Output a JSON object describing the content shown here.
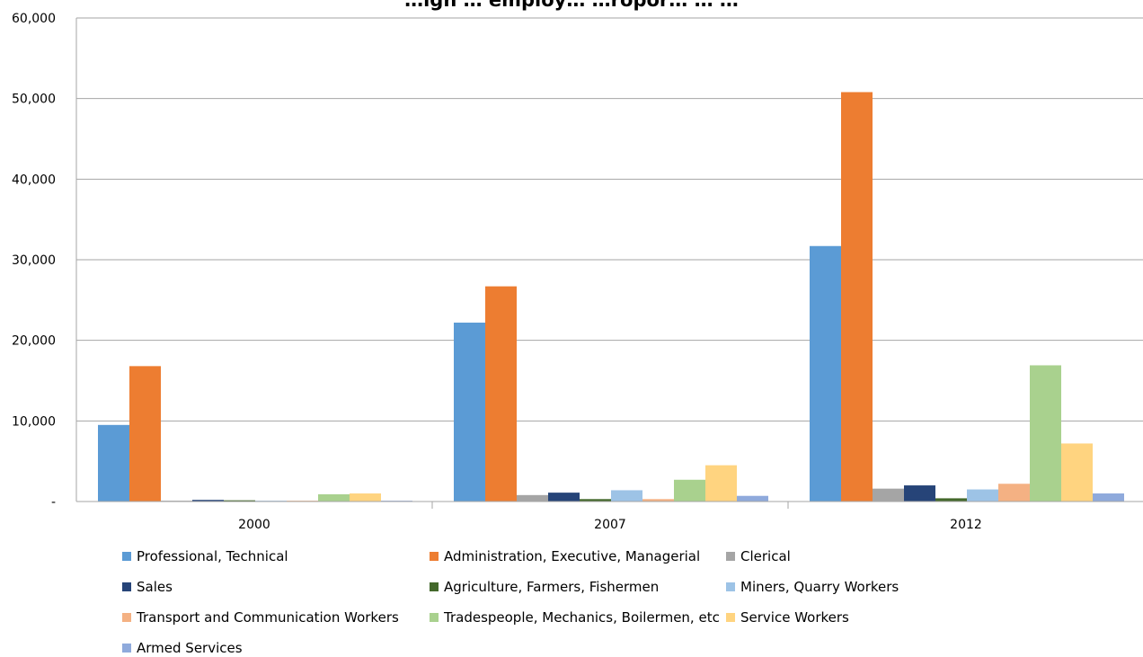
{
  "chart_data": {
    "type": "bar",
    "title": "…ign … employ… …ropor… … …",
    "categories": [
      "2000",
      "2007",
      "2012"
    ],
    "ylim": [
      0,
      60000
    ],
    "yticks": [
      0,
      10000,
      20000,
      30000,
      40000,
      50000,
      60000
    ],
    "ytick_labels": [
      "-",
      "10,000",
      "20,000",
      "30,000",
      "40,000",
      "50,000",
      "60,000"
    ],
    "grid": true,
    "legend_position": "bottom",
    "series": [
      {
        "name": "Professional, Technical",
        "color": "#5B9BD5",
        "values": [
          9500,
          22200,
          31700
        ]
      },
      {
        "name": "Administration, Executive, Managerial",
        "color": "#ED7D31",
        "values": [
          16800,
          26700,
          50800
        ]
      },
      {
        "name": "Clerical",
        "color": "#A5A5A5",
        "values": [
          100,
          800,
          1600
        ]
      },
      {
        "name": "Sales",
        "color": "#264478",
        "values": [
          200,
          1100,
          2000
        ]
      },
      {
        "name": "Agriculture, Farmers, Fishermen",
        "color": "#43682B",
        "values": [
          150,
          300,
          400
        ]
      },
      {
        "name": "Miners, Quarry Workers",
        "color": "#9DC3E6",
        "values": [
          100,
          1400,
          1500
        ]
      },
      {
        "name": "Transport and Communication Workers",
        "color": "#F4B183",
        "values": [
          100,
          300,
          2200
        ]
      },
      {
        "name": "Tradespeople, Mechanics, Boilermen, etc",
        "color": "#A9D18E",
        "values": [
          900,
          2700,
          16900
        ]
      },
      {
        "name": "Service Workers",
        "color": "#FFD480",
        "values": [
          1000,
          4500,
          7200
        ]
      },
      {
        "name": "Armed Services",
        "color": "#8FAADC",
        "values": [
          100,
          700,
          1000
        ]
      }
    ]
  }
}
